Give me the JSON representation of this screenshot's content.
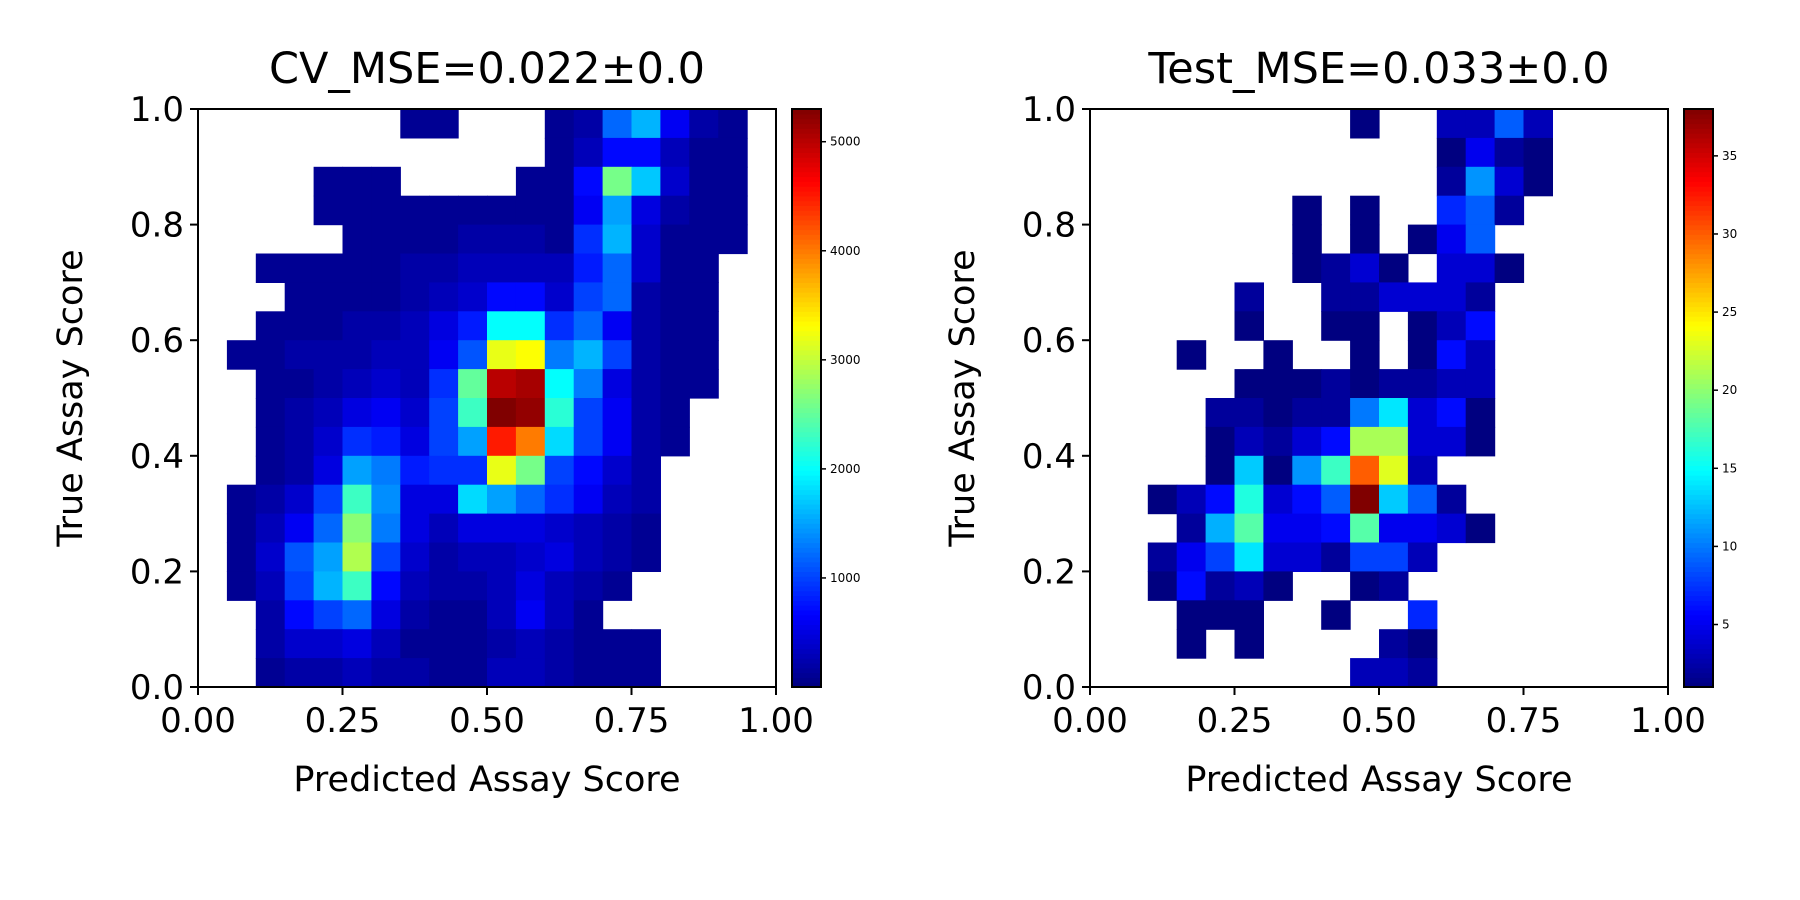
{
  "chart_data": [
    {
      "type": "heatmap",
      "title": "CV_MSE=0.022±0.0",
      "xlabel": "Predicted Assay Score",
      "ylabel": "True Assay Score",
      "xlim": [
        0,
        1
      ],
      "ylim": [
        0,
        1
      ],
      "x_ticks": [
        "0.00",
        "0.25",
        "0.50",
        "0.75",
        "1.00"
      ],
      "y_ticks": [
        "0.0",
        "0.2",
        "0.4",
        "0.6",
        "0.8",
        "1.0"
      ],
      "colorbar": {
        "min": 0,
        "max": 5300,
        "ticks": [
          "1000",
          "2000",
          "3000",
          "4000",
          "5000"
        ],
        "colormap": "jet"
      },
      "bins": [
        20,
        20
      ],
      "grid": false,
      "counts_rows_top_to_bottom": [
        [
          0,
          0,
          0,
          0,
          0,
          0,
          0,
          100,
          100,
          0,
          0,
          0,
          100,
          200,
          1200,
          1600,
          600,
          200,
          100,
          0
        ],
        [
          0,
          0,
          0,
          0,
          0,
          0,
          0,
          0,
          0,
          0,
          0,
          0,
          100,
          300,
          700,
          700,
          300,
          100,
          100,
          0
        ],
        [
          0,
          0,
          0,
          0,
          100,
          100,
          100,
          0,
          0,
          0,
          0,
          100,
          100,
          700,
          2600,
          1700,
          400,
          100,
          100,
          0
        ],
        [
          0,
          0,
          0,
          0,
          100,
          100,
          100,
          100,
          100,
          100,
          100,
          100,
          100,
          600,
          1500,
          500,
          200,
          100,
          100,
          0
        ],
        [
          0,
          0,
          0,
          0,
          0,
          100,
          100,
          100,
          100,
          200,
          200,
          200,
          100,
          900,
          1600,
          400,
          100,
          100,
          100,
          0
        ],
        [
          0,
          0,
          100,
          100,
          100,
          100,
          100,
          200,
          200,
          300,
          300,
          300,
          300,
          800,
          1200,
          400,
          100,
          100,
          0,
          0
        ],
        [
          0,
          0,
          0,
          100,
          100,
          100,
          100,
          200,
          300,
          400,
          700,
          700,
          400,
          1000,
          1200,
          200,
          100,
          100,
          0,
          0
        ],
        [
          0,
          0,
          100,
          100,
          100,
          200,
          200,
          300,
          500,
          800,
          2000,
          2000,
          900,
          1200,
          600,
          200,
          100,
          100,
          0,
          0
        ],
        [
          0,
          100,
          100,
          200,
          200,
          200,
          300,
          300,
          600,
          1100,
          3200,
          3300,
          1300,
          1600,
          1000,
          200,
          100,
          100,
          0,
          0
        ],
        [
          0,
          0,
          100,
          100,
          200,
          300,
          400,
          300,
          900,
          2500,
          5000,
          5100,
          2000,
          1300,
          500,
          200,
          100,
          100,
          0,
          0
        ],
        [
          0,
          0,
          100,
          200,
          300,
          500,
          600,
          400,
          1000,
          2300,
          5300,
          5200,
          2200,
          1000,
          600,
          200,
          100,
          0,
          0,
          0
        ],
        [
          0,
          0,
          100,
          200,
          400,
          900,
          800,
          500,
          1000,
          1500,
          4500,
          4000,
          1800,
          1000,
          600,
          200,
          100,
          0,
          0,
          0
        ],
        [
          0,
          0,
          100,
          200,
          500,
          1500,
          1300,
          800,
          900,
          900,
          3200,
          2600,
          1000,
          700,
          400,
          200,
          0,
          0,
          0,
          0
        ],
        [
          0,
          100,
          200,
          400,
          1000,
          2300,
          1400,
          500,
          500,
          1800,
          1500,
          1200,
          900,
          600,
          300,
          200,
          0,
          0,
          0,
          0
        ],
        [
          0,
          100,
          300,
          600,
          1200,
          2700,
          1300,
          500,
          300,
          500,
          500,
          500,
          400,
          300,
          200,
          100,
          0,
          0,
          0,
          0
        ],
        [
          0,
          100,
          400,
          1100,
          1500,
          2900,
          1000,
          400,
          200,
          300,
          300,
          400,
          500,
          300,
          200,
          100,
          0,
          0,
          0,
          0
        ],
        [
          0,
          100,
          300,
          1000,
          1600,
          2300,
          700,
          300,
          200,
          200,
          300,
          500,
          300,
          200,
          100,
          0,
          0,
          0,
          0,
          0
        ],
        [
          0,
          0,
          200,
          700,
          1000,
          1200,
          500,
          200,
          100,
          100,
          300,
          600,
          300,
          100,
          0,
          0,
          0,
          0,
          0,
          0
        ],
        [
          0,
          0,
          200,
          400,
          400,
          500,
          300,
          100,
          100,
          100,
          200,
          300,
          200,
          100,
          100,
          100,
          0,
          0,
          0,
          0
        ],
        [
          0,
          0,
          100,
          200,
          200,
          300,
          200,
          200,
          100,
          100,
          300,
          300,
          200,
          100,
          100,
          100,
          0,
          0,
          0,
          0
        ]
      ]
    },
    {
      "type": "heatmap",
      "title": "Test_MSE=0.033±0.0",
      "xlabel": "Predicted Assay Score",
      "ylabel": "True Assay Score",
      "xlim": [
        0,
        1
      ],
      "ylim": [
        0,
        1
      ],
      "x_ticks": [
        "0.00",
        "0.25",
        "0.50",
        "0.75",
        "1.00"
      ],
      "y_ticks": [
        "0.0",
        "0.2",
        "0.4",
        "0.6",
        "0.8",
        "1.0"
      ],
      "colorbar": {
        "min": 1,
        "max": 38,
        "ticks": [
          "5",
          "10",
          "15",
          "20",
          "25",
          "30",
          "35"
        ],
        "colormap": "jet"
      },
      "bins": [
        20,
        20
      ],
      "grid": false,
      "counts_rows_top_to_bottom": [
        [
          0,
          0,
          0,
          0,
          0,
          0,
          0,
          0,
          0,
          1,
          0,
          0,
          3,
          3,
          9,
          3,
          0,
          0,
          0,
          0
        ],
        [
          0,
          0,
          0,
          0,
          0,
          0,
          0,
          0,
          0,
          0,
          0,
          0,
          1,
          5,
          2,
          1,
          0,
          0,
          0,
          0
        ],
        [
          0,
          0,
          0,
          0,
          0,
          0,
          0,
          0,
          0,
          0,
          0,
          0,
          2,
          11,
          4,
          1,
          0,
          0,
          0,
          0
        ],
        [
          0,
          0,
          0,
          0,
          0,
          0,
          0,
          1,
          0,
          1,
          0,
          0,
          7,
          9,
          2,
          0,
          0,
          0,
          0,
          0
        ],
        [
          0,
          0,
          0,
          0,
          0,
          0,
          0,
          1,
          0,
          1,
          0,
          1,
          5,
          9,
          0,
          0,
          0,
          0,
          0,
          0
        ],
        [
          0,
          0,
          0,
          0,
          0,
          0,
          0,
          1,
          2,
          4,
          1,
          0,
          4,
          4,
          1,
          0,
          0,
          0,
          0,
          0
        ],
        [
          0,
          0,
          0,
          0,
          0,
          2,
          0,
          0,
          2,
          2,
          4,
          4,
          4,
          2,
          0,
          0,
          0,
          0,
          0,
          0
        ],
        [
          0,
          0,
          0,
          0,
          0,
          1,
          0,
          0,
          1,
          1,
          0,
          1,
          3,
          6,
          0,
          0,
          0,
          0,
          0,
          0
        ],
        [
          0,
          0,
          0,
          1,
          0,
          0,
          1,
          0,
          0,
          1,
          0,
          1,
          6,
          3,
          0,
          0,
          0,
          0,
          0,
          0
        ],
        [
          0,
          0,
          0,
          0,
          0,
          1,
          1,
          1,
          2,
          1,
          2,
          2,
          3,
          3,
          0,
          0,
          0,
          0,
          0,
          0
        ],
        [
          0,
          0,
          0,
          0,
          2,
          2,
          1,
          2,
          2,
          10,
          14,
          4,
          6,
          1,
          0,
          0,
          0,
          0,
          0,
          0
        ],
        [
          0,
          0,
          0,
          0,
          1,
          3,
          2,
          4,
          6,
          21,
          21,
          4,
          4,
          1,
          0,
          0,
          0,
          0,
          0,
          0
        ],
        [
          0,
          0,
          0,
          0,
          1,
          13,
          1,
          11,
          17,
          30,
          23,
          3,
          0,
          0,
          0,
          0,
          0,
          0,
          0,
          0
        ],
        [
          0,
          0,
          1,
          3,
          6,
          16,
          4,
          6,
          9,
          38,
          13,
          9,
          2,
          0,
          0,
          0,
          0,
          0,
          0,
          0
        ],
        [
          0,
          0,
          0,
          2,
          12,
          18,
          5,
          5,
          6,
          18,
          5,
          5,
          4,
          1,
          0,
          0,
          0,
          0,
          0,
          0
        ],
        [
          0,
          0,
          2,
          5,
          8,
          14,
          4,
          4,
          2,
          8,
          8,
          3,
          0,
          0,
          0,
          0,
          0,
          0,
          0,
          0
        ],
        [
          0,
          0,
          1,
          6,
          2,
          3,
          1,
          0,
          0,
          1,
          2,
          0,
          0,
          0,
          0,
          0,
          0,
          0,
          0,
          0
        ],
        [
          0,
          0,
          0,
          1,
          1,
          1,
          0,
          0,
          1,
          0,
          0,
          7,
          0,
          0,
          0,
          0,
          0,
          0,
          0,
          0
        ],
        [
          0,
          0,
          0,
          1,
          0,
          1,
          0,
          0,
          0,
          0,
          2,
          1,
          0,
          0,
          0,
          0,
          0,
          0,
          0,
          0
        ],
        [
          0,
          0,
          0,
          0,
          0,
          0,
          0,
          0,
          0,
          3,
          3,
          2,
          0,
          0,
          0,
          0,
          0,
          0,
          0,
          0
        ]
      ]
    }
  ]
}
